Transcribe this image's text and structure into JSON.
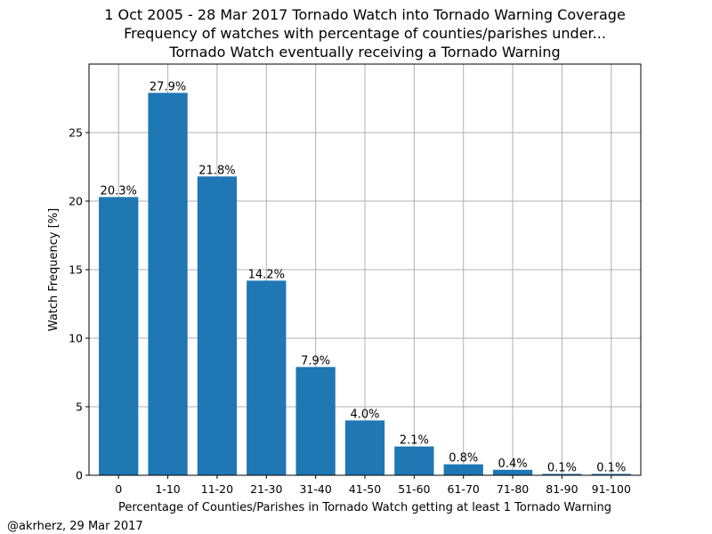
{
  "chart_data": {
    "type": "bar",
    "title_lines": [
      "1 Oct 2005 - 28 Mar 2017 Tornado Watch into Tornado Warning Coverage",
      "Frequency of watches with percentage of counties/parishes under...",
      "Tornado Watch eventually receiving a Tornado Warning"
    ],
    "xlabel": "Percentage of Counties/Parishes in Tornado Watch getting at least 1 Tornado Warning",
    "ylabel": "Watch Frequency [%]",
    "categories": [
      "0",
      "1-10",
      "11-20",
      "21-30",
      "31-40",
      "41-50",
      "51-60",
      "61-70",
      "71-80",
      "81-90",
      "91-100"
    ],
    "values": [
      20.3,
      27.9,
      21.8,
      14.2,
      7.9,
      4.0,
      2.1,
      0.8,
      0.4,
      0.1,
      0.1
    ],
    "value_labels": [
      "20.3%",
      "27.9%",
      "21.8%",
      "14.2%",
      "7.9%",
      "4.0%",
      "2.1%",
      "0.8%",
      "0.4%",
      "0.1%",
      "0.1%"
    ],
    "ylim": [
      0,
      30
    ],
    "yticks": [
      0,
      5,
      10,
      15,
      20,
      25
    ],
    "grid": true,
    "bar_color": "#1f77b4"
  },
  "footer": "@akrherz, 29 Mar 2017"
}
